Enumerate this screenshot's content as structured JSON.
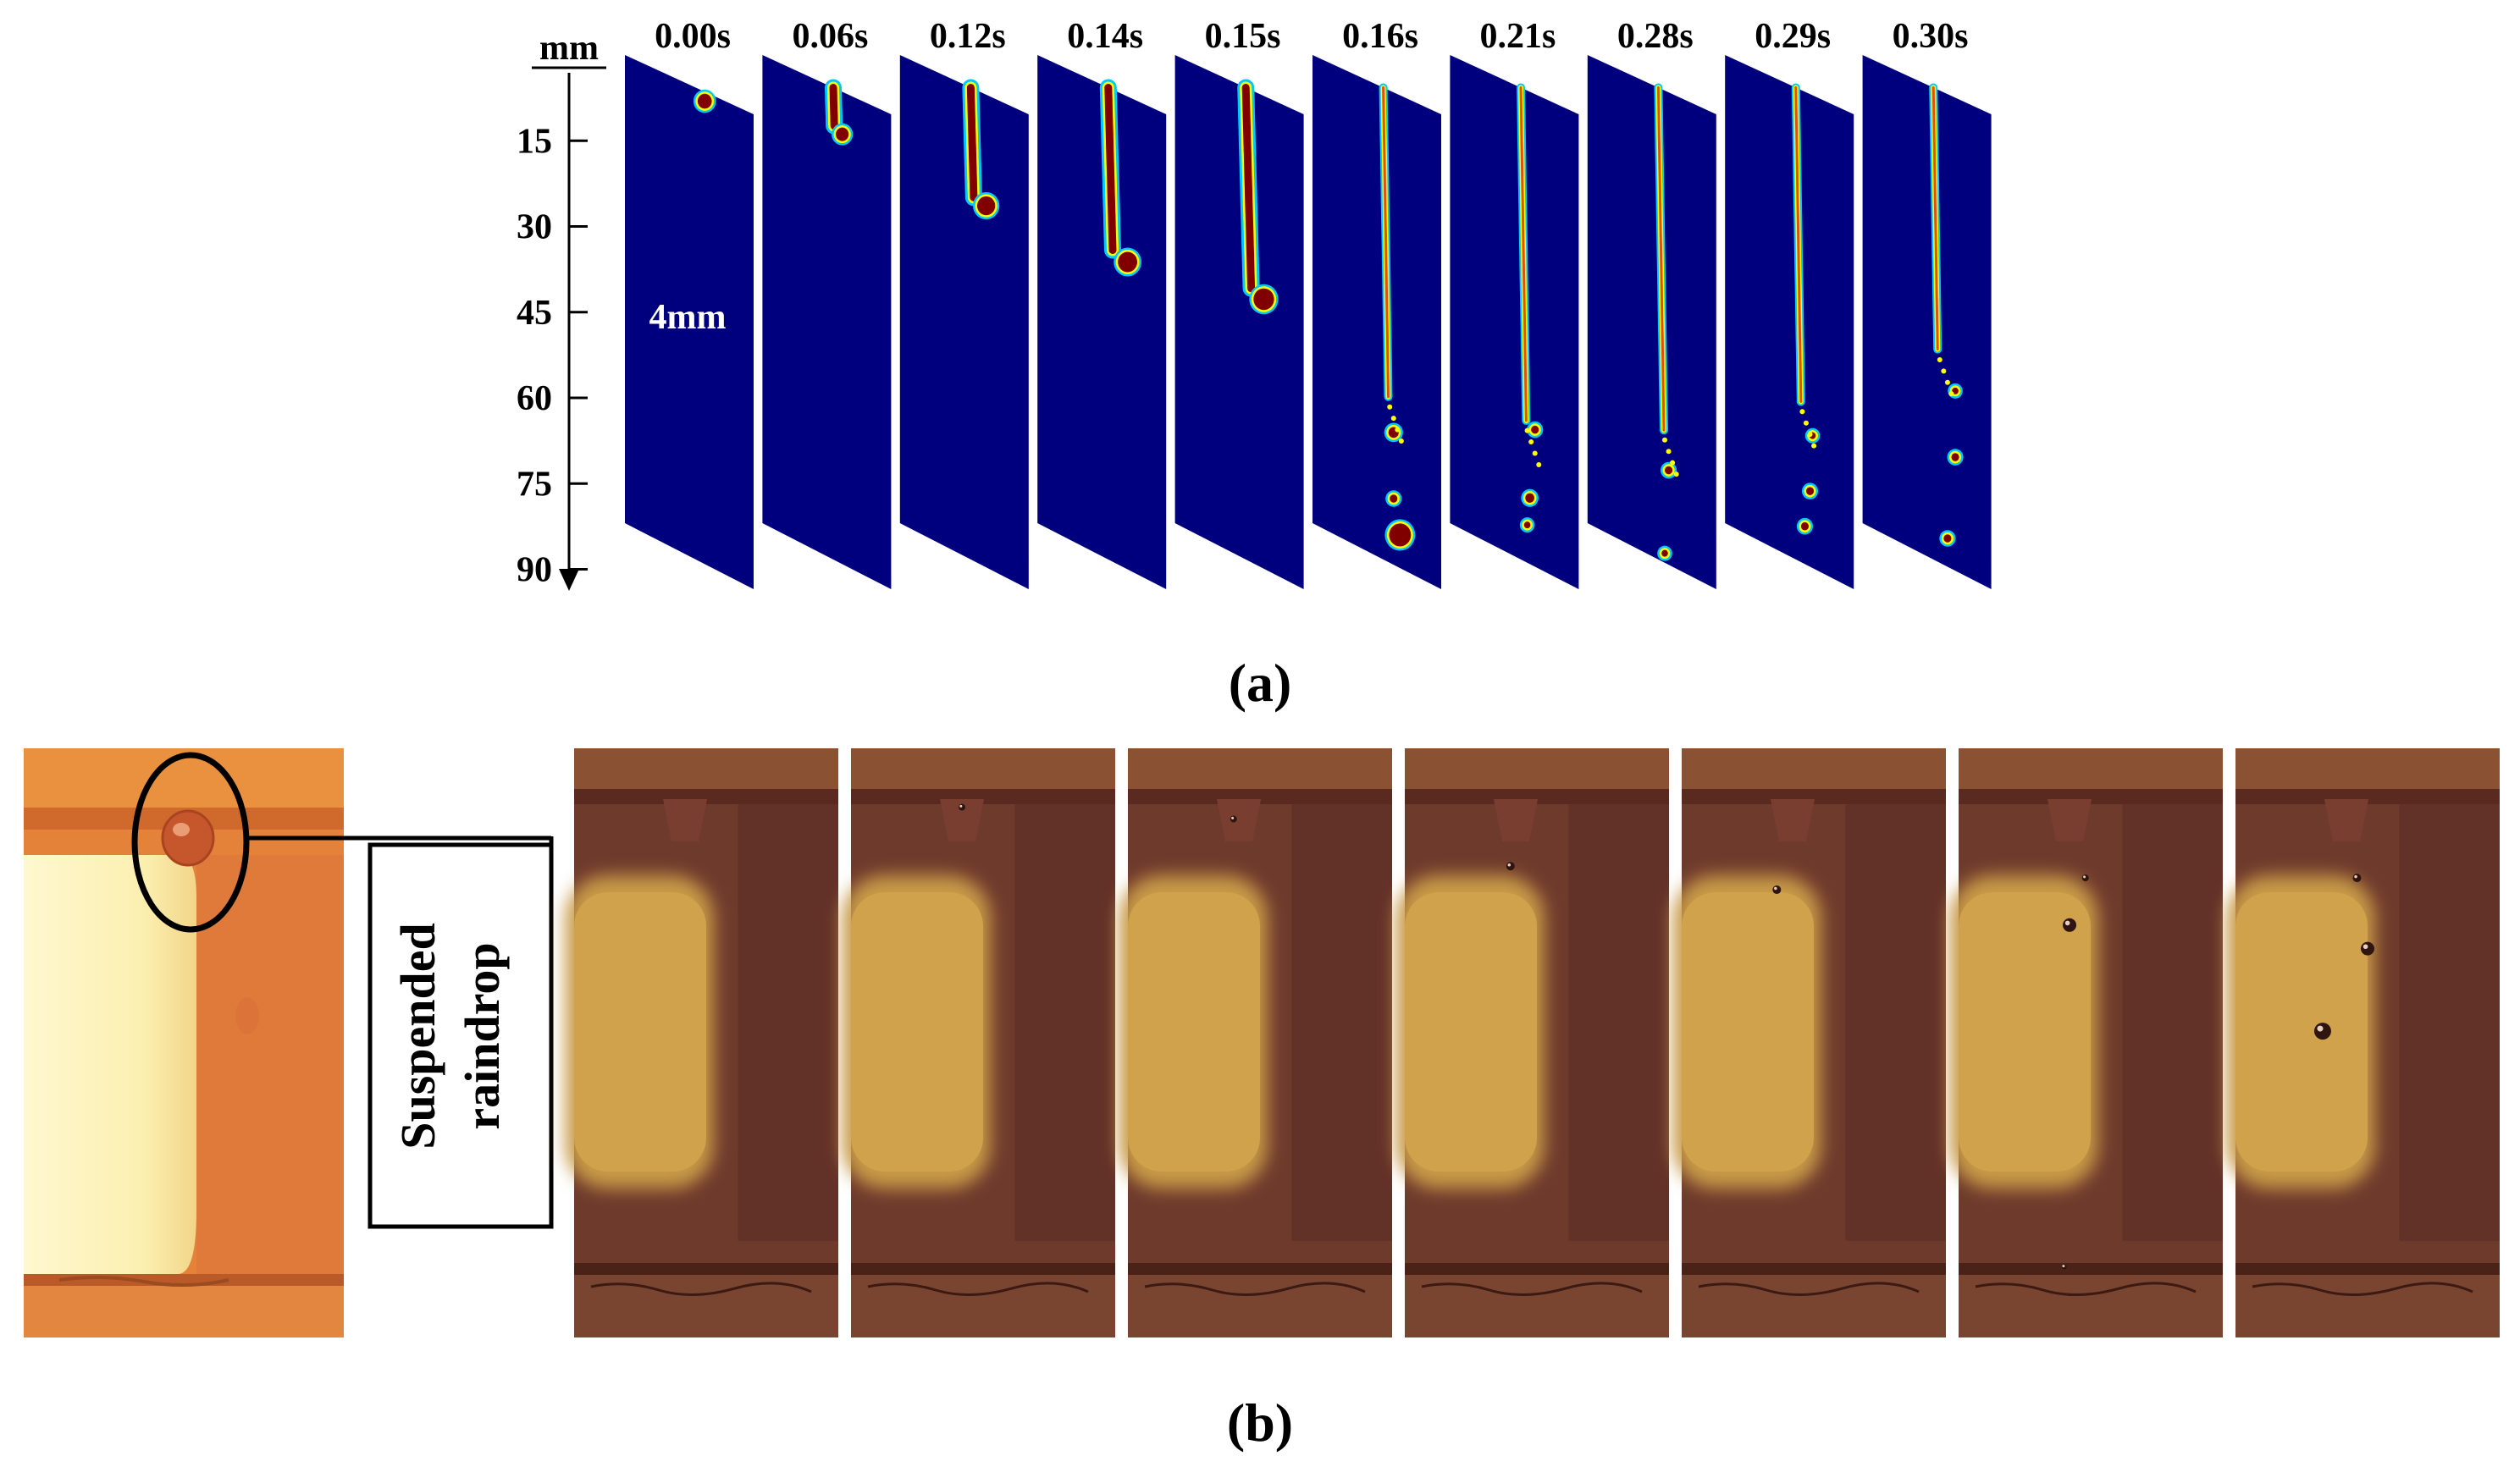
{
  "panel_a": {
    "axis_unit": "mm",
    "axis_ticks": [
      "15",
      "30",
      "45",
      "60",
      "75",
      "90"
    ],
    "axis_tick_values": [
      15,
      30,
      45,
      60,
      75,
      90
    ],
    "axis_max": 100,
    "times": [
      "0.00s",
      "0.06s",
      "0.12s",
      "0.14s",
      "0.15s",
      "0.16s",
      "0.21s",
      "0.28s",
      "0.29s",
      "0.30s"
    ],
    "panel_note": "4mm",
    "caption": "(a)",
    "colors": {
      "background": "#00007f",
      "liquid": "#800000",
      "interface": "#ffff00",
      "edge": "#00c8ff"
    }
  },
  "panel_b": {
    "annotation_line1": "Suspended",
    "annotation_line2": "raindrop",
    "caption": "(b)",
    "frame_count": 7,
    "colors": {
      "frame": "#7a4030",
      "light_zone": "#d2a24c",
      "closeup": "#e3823c",
      "closeup_light": "#fbf2b8"
    }
  }
}
